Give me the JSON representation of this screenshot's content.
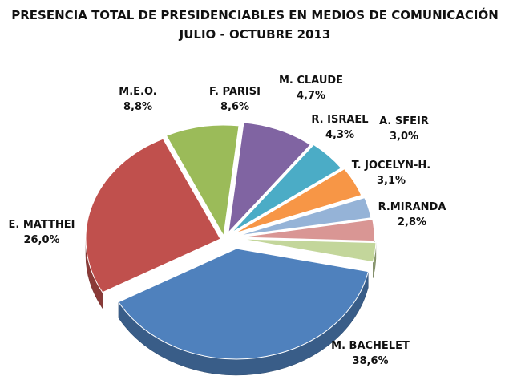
{
  "chart_data": {
    "type": "pie",
    "title": "PRESENCIA TOTAL DE PRESIDENCIABLES EN MEDIOS DE COMUNICACIÓN",
    "subtitle": "JULIO - OCTUBRE 2013",
    "slices": [
      {
        "name": "M. BACHELET",
        "value": 38.6,
        "display": "38,6%",
        "color": "#4F81BD"
      },
      {
        "name": "E. MATTHEI",
        "value": 26.0,
        "display": "26,0%",
        "color": "#C0504D"
      },
      {
        "name": "M.E.O.",
        "value": 8.8,
        "display": "8,8%",
        "color": "#9BBB59"
      },
      {
        "name": "F. PARISI",
        "value": 8.6,
        "display": "8,6%",
        "color": "#8064A2"
      },
      {
        "name": "M. CLAUDE",
        "value": 4.7,
        "display": "4,7%",
        "color": "#4BACC6"
      },
      {
        "name": "R. ISRAEL",
        "value": 4.3,
        "display": "4,3%",
        "color": "#F79646"
      },
      {
        "name": "A. SFEIR",
        "value": 3.0,
        "display": "3,0%",
        "color": "#95B3D7"
      },
      {
        "name": "T. JOCELYN-H.",
        "value": 3.1,
        "display": "3,1%",
        "color": "#D99694"
      },
      {
        "name": "R.MIRANDA",
        "value": 2.8,
        "display": "2,8%",
        "color": "#C3D69B"
      }
    ]
  }
}
